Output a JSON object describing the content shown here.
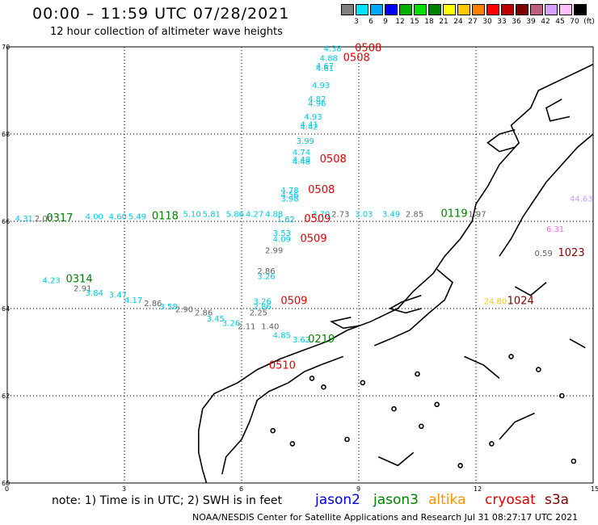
{
  "header": {
    "title": "00:00 – 11:59 UTC 07/28/2021",
    "subtitle": "12 hour collection of altimeter wave heights"
  },
  "colorbar": {
    "colors": [
      "#808080",
      "#00e5ff",
      "#00a8ff",
      "#0000ff",
      "#00b000",
      "#00e000",
      "#008000",
      "#ffff00",
      "#ffc800",
      "#ff8000",
      "#ff0000",
      "#c00000",
      "#800000",
      "#c06080",
      "#d8a0ff",
      "#ffc0ff",
      "#000000"
    ],
    "labels": [
      "3",
      "6",
      "9",
      "12",
      "15",
      "18",
      "21",
      "24",
      "27",
      "30",
      "33",
      "36",
      "39",
      "42",
      "45",
      "70",
      "(ft)"
    ]
  },
  "map": {
    "lat_labels": [
      "70",
      "68",
      "66",
      "64",
      "62",
      "60"
    ],
    "lon_labels": [
      "0",
      "3",
      "6",
      "9",
      "12",
      "15"
    ],
    "annotations": [
      {
        "t": "4.38",
        "c": "#00c8e0",
        "lon": 8.1,
        "lat": 69.9
      },
      {
        "t": "0508",
        "c": "#e00000",
        "lon": 8.9,
        "lat": 69.9,
        "big": true
      },
      {
        "t": "4.88",
        "c": "#00c8e0",
        "lon": 8.0,
        "lat": 69.68
      },
      {
        "t": "0508",
        "c": "#e00000",
        "lon": 8.6,
        "lat": 69.68,
        "big": true
      },
      {
        "t": "4.67",
        "c": "#00c8e0",
        "lon": 7.9,
        "lat": 69.5
      },
      {
        "t": "4.61",
        "c": "#00c8e0",
        "lon": 7.9,
        "lat": 69.44
      },
      {
        "t": "4.93",
        "c": "#00c8e0",
        "lon": 7.8,
        "lat": 69.06
      },
      {
        "t": "4.82",
        "c": "#00c8e0",
        "lon": 7.7,
        "lat": 68.74
      },
      {
        "t": "4.96",
        "c": "#00c8e0",
        "lon": 7.7,
        "lat": 68.64
      },
      {
        "t": "4.93",
        "c": "#00c8e0",
        "lon": 7.6,
        "lat": 68.33
      },
      {
        "t": "4.41",
        "c": "#00c8e0",
        "lon": 7.5,
        "lat": 68.16
      },
      {
        "t": "4.42",
        "c": "#00c8e0",
        "lon": 7.5,
        "lat": 68.1
      },
      {
        "t": "3.99",
        "c": "#00c8e0",
        "lon": 7.4,
        "lat": 67.78
      },
      {
        "t": "4.74",
        "c": "#00c8e0",
        "lon": 7.3,
        "lat": 67.52
      },
      {
        "t": "4.48",
        "c": "#00c8e0",
        "lon": 7.3,
        "lat": 67.35
      },
      {
        "t": "4.48",
        "c": "#00c8e0",
        "lon": 7.3,
        "lat": 67.31
      },
      {
        "t": "0508",
        "c": "#e00000",
        "lon": 8.0,
        "lat": 67.35,
        "big": true
      },
      {
        "t": "4.78",
        "c": "#00c8e0",
        "lon": 7.0,
        "lat": 66.65
      },
      {
        "t": "4.56",
        "c": "#00c8e0",
        "lon": 7.0,
        "lat": 66.55
      },
      {
        "t": "3.98",
        "c": "#00c8e0",
        "lon": 7.0,
        "lat": 66.45
      },
      {
        "t": "0508",
        "c": "#e00000",
        "lon": 7.7,
        "lat": 66.65,
        "big": true
      },
      {
        "t": "4.31",
        "c": "#00c8e0",
        "lon": 0.2,
        "lat": 66.0
      },
      {
        "t": "2.00",
        "c": "#606060",
        "lon": 0.7,
        "lat": 66.0
      },
      {
        "t": "0317",
        "c": "#008000",
        "lon": 1.0,
        "lat": 66.0,
        "big": true
      },
      {
        "t": "4.00",
        "c": "#00c8e0",
        "lon": 2.0,
        "lat": 66.05
      },
      {
        "t": "4.60",
        "c": "#00c8e0",
        "lon": 2.6,
        "lat": 66.05
      },
      {
        "t": "5.49",
        "c": "#00c8e0",
        "lon": 3.1,
        "lat": 66.05
      },
      {
        "t": "0118",
        "c": "#008000",
        "lon": 3.7,
        "lat": 66.05,
        "big": true
      },
      {
        "t": "5.10",
        "c": "#00c8e0",
        "lon": 4.5,
        "lat": 66.1
      },
      {
        "t": "5.81",
        "c": "#00c8e0",
        "lon": 5.0,
        "lat": 66.1
      },
      {
        "t": "5.86",
        "c": "#00c8e0",
        "lon": 5.6,
        "lat": 66.1
      },
      {
        "t": "4.27",
        "c": "#00c8e0",
        "lon": 6.1,
        "lat": 66.1
      },
      {
        "t": "4.88",
        "c": "#00c8e0",
        "lon": 6.6,
        "lat": 66.1
      },
      {
        "t": "3.70",
        "c": "#00c8e0",
        "lon": 7.8,
        "lat": 66.1
      },
      {
        "t": "2.73",
        "c": "#606060",
        "lon": 8.3,
        "lat": 66.1
      },
      {
        "t": "3.03",
        "c": "#00c8e0",
        "lon": 8.9,
        "lat": 66.1
      },
      {
        "t": "3.49",
        "c": "#00c8e0",
        "lon": 9.6,
        "lat": 66.1
      },
      {
        "t": "2.85",
        "c": "#606060",
        "lon": 10.2,
        "lat": 66.1
      },
      {
        "t": "0119",
        "c": "#008000",
        "lon": 11.1,
        "lat": 66.1,
        "big": true
      },
      {
        "t": "1.97",
        "c": "#606060",
        "lon": 11.8,
        "lat": 66.1
      },
      {
        "t": "44.63",
        "c": "#c0a0ff",
        "lon": 14.4,
        "lat": 66.45
      },
      {
        "t": "1.62",
        "c": "#00c8e0",
        "lon": 6.9,
        "lat": 65.98
      },
      {
        "t": "0509",
        "c": "#e00000",
        "lon": 7.6,
        "lat": 65.98,
        "big": true
      },
      {
        "t": "3.53",
        "c": "#00c8e0",
        "lon": 6.8,
        "lat": 65.67
      },
      {
        "t": "4.09",
        "c": "#00c8e0",
        "lon": 6.8,
        "lat": 65.53
      },
      {
        "t": "0509",
        "c": "#e00000",
        "lon": 7.5,
        "lat": 65.53,
        "big": true
      },
      {
        "t": "2.99",
        "c": "#606060",
        "lon": 6.6,
        "lat": 65.27
      },
      {
        "t": "0.59",
        "c": "#606060",
        "lon": 13.5,
        "lat": 65.2
      },
      {
        "t": "1023",
        "c": "#800000",
        "lon": 14.1,
        "lat": 65.2,
        "big": true
      },
      {
        "t": "2.86",
        "c": "#606060",
        "lon": 6.4,
        "lat": 64.8
      },
      {
        "t": "3.26",
        "c": "#00c8e0",
        "lon": 6.4,
        "lat": 64.68
      },
      {
        "t": "4.23",
        "c": "#00c8e0",
        "lon": 0.9,
        "lat": 64.58
      },
      {
        "t": "0314",
        "c": "#008000",
        "lon": 1.5,
        "lat": 64.6,
        "big": true
      },
      {
        "t": "2.91",
        "c": "#606060",
        "lon": 1.7,
        "lat": 64.4
      },
      {
        "t": "3.84",
        "c": "#00c8e0",
        "lon": 2.0,
        "lat": 64.3
      },
      {
        "t": "3.47",
        "c": "#00c8e0",
        "lon": 2.6,
        "lat": 64.25
      },
      {
        "t": "4.17",
        "c": "#00c8e0",
        "lon": 3.0,
        "lat": 64.13
      },
      {
        "t": "2.86",
        "c": "#606060",
        "lon": 3.5,
        "lat": 64.06
      },
      {
        "t": "3.58",
        "c": "#00c8e0",
        "lon": 3.9,
        "lat": 63.98
      },
      {
        "t": "2.90",
        "c": "#606060",
        "lon": 4.3,
        "lat": 63.92
      },
      {
        "t": "2.86",
        "c": "#606060",
        "lon": 4.8,
        "lat": 63.84
      },
      {
        "t": "3.45",
        "c": "#00c8e0",
        "lon": 5.1,
        "lat": 63.7
      },
      {
        "t": "3.26",
        "c": "#00c8e0",
        "lon": 5.5,
        "lat": 63.6
      },
      {
        "t": "2.11",
        "c": "#606060",
        "lon": 5.9,
        "lat": 63.53
      },
      {
        "t": "1.40",
        "c": "#606060",
        "lon": 6.5,
        "lat": 63.53
      },
      {
        "t": "3.26",
        "c": "#00c8e0",
        "lon": 6.3,
        "lat": 64.1
      },
      {
        "t": "0509",
        "c": "#e00000",
        "lon": 7.0,
        "lat": 64.1,
        "big": true
      },
      {
        "t": "2.86",
        "c": "#00c8e0",
        "lon": 6.3,
        "lat": 63.98
      },
      {
        "t": "2.25",
        "c": "#606060",
        "lon": 6.2,
        "lat": 63.84
      },
      {
        "t": "4.85",
        "c": "#00c8e0",
        "lon": 6.8,
        "lat": 63.32
      },
      {
        "t": "3.62",
        "c": "#00c8e0",
        "lon": 7.3,
        "lat": 63.22
      },
      {
        "t": "0219",
        "c": "#008000",
        "lon": 7.7,
        "lat": 63.22,
        "big": true
      },
      {
        "t": "24.80",
        "c": "#ffc800",
        "lon": 12.2,
        "lat": 64.1
      },
      {
        "t": "1024",
        "c": "#800000",
        "lon": 12.8,
        "lat": 64.1,
        "big": true
      },
      {
        "t": "0510",
        "c": "#e00000",
        "lon": 6.7,
        "lat": 62.62,
        "big": true
      },
      {
        "t": "6.31",
        "c": "#ff60ff",
        "lon": 13.8,
        "lat": 65.76
      }
    ]
  },
  "note": "note:  1) Time is in UTC;  2) SWH is in feet",
  "legend": [
    {
      "label": "jason2",
      "color": "#0000e0"
    },
    {
      "label": "jason3",
      "color": "#008000"
    },
    {
      "label": "altika",
      "color": "#ff9000"
    },
    {
      "label": "cryosat",
      "color": "#e00000"
    },
    {
      "label": "s3a",
      "color": "#800000"
    }
  ],
  "footer": "NOAA/NESDIS Center for Satellite Applications and Research    Jul 31 08:27:17 UTC 2021"
}
